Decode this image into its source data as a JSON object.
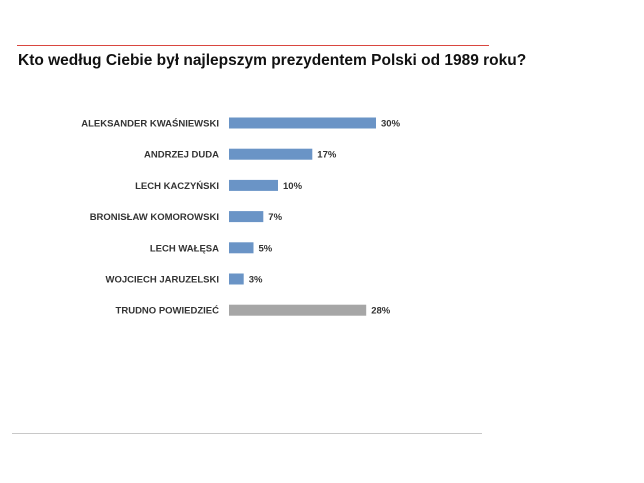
{
  "chart_data": {
    "type": "bar",
    "orientation": "horizontal",
    "title": "Kto według Ciebie był najlepszym prezydentem Polski od 1989 roku?",
    "categories": [
      "ALEKSANDER KWAŚNIEWSKI",
      "ANDRZEJ DUDA",
      "LECH KACZYŃSKI",
      "BRONISŁAW KOMOROWSKI",
      "LECH WAŁĘSA",
      "WOJCIECH JARUZELSKI",
      "TRUDNO POWIEDZIEĆ"
    ],
    "values": [
      30,
      17,
      10,
      7,
      5,
      3,
      28
    ],
    "value_labels": [
      "30%",
      "17%",
      "10%",
      "7%",
      "5%",
      "3%",
      "28%"
    ],
    "bar_colors": [
      "#6a94c6",
      "#6a94c6",
      "#6a94c6",
      "#6a94c6",
      "#6a94c6",
      "#6a94c6",
      "#a6a6a6"
    ],
    "unit": "%",
    "xlim": [
      0,
      30
    ],
    "grid": false,
    "legend": "none"
  },
  "colors": {
    "accent_rule": "#d9463f",
    "bottom_rule": "#c8c8c8",
    "text": "#333333"
  }
}
